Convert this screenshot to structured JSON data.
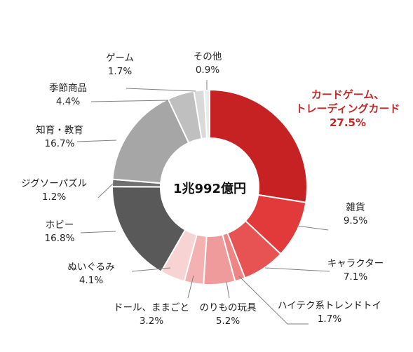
{
  "chart_data": {
    "type": "pie",
    "style": "donut",
    "center_label": "1兆992億円",
    "slices": [
      {
        "name": "カードゲーム、トレーディングカード",
        "label_lines": [
          "カードゲーム、",
          "トレーディングカード"
        ],
        "value_label": "27.5%",
        "value": 27.5,
        "color": "#c62223",
        "highlight": true
      },
      {
        "name": "雑貨",
        "label_lines": [
          "雑貨"
        ],
        "value_label": "9.5%",
        "value": 9.5,
        "color": "#e23a3a"
      },
      {
        "name": "キャラクター",
        "label_lines": [
          "キャラクター"
        ],
        "value_label": "7.1%",
        "value": 7.1,
        "color": "#e75252"
      },
      {
        "name": "ハイテク系トレンドトイ",
        "label_lines": [
          "ハイテク系トレンドトイ"
        ],
        "value_label": "1.7%",
        "value": 1.7,
        "color": "#ee8585"
      },
      {
        "name": "のりもの玩具",
        "label_lines": [
          "のりもの玩具"
        ],
        "value_label": "5.2%",
        "value": 5.2,
        "color": "#f09b9b"
      },
      {
        "name": "ドール、ままごと",
        "label_lines": [
          "ドール、ままごと"
        ],
        "value_label": "3.2%",
        "value": 3.2,
        "color": "#f3b1b1"
      },
      {
        "name": "ぬいぐるみ",
        "label_lines": [
          "ぬいぐるみ"
        ],
        "value_label": "4.1%",
        "value": 4.1,
        "color": "#f8d3d3"
      },
      {
        "name": "ホビー",
        "label_lines": [
          "ホビー"
        ],
        "value_label": "16.8%",
        "value": 16.8,
        "color": "#595959"
      },
      {
        "name": "ジグソーパズル",
        "label_lines": [
          "ジグソーパズル"
        ],
        "value_label": "1.2%",
        "value": 1.2,
        "color": "#6f6f6f"
      },
      {
        "name": "知育・教育",
        "label_lines": [
          "知育・教育"
        ],
        "value_label": "16.7%",
        "value": 16.7,
        "color": "#a6a6a6"
      },
      {
        "name": "季節商品",
        "label_lines": [
          "季節商品"
        ],
        "value_label": "4.4%",
        "value": 4.4,
        "color": "#bfbfbf"
      },
      {
        "name": "ゲーム",
        "label_lines": [
          "ゲーム"
        ],
        "value_label": "1.7%",
        "value": 1.7,
        "color": "#d9d9d9"
      },
      {
        "name": "その他",
        "label_lines": [
          "その他"
        ],
        "value_label": "0.9%",
        "value": 0.9,
        "color": "#ebebeb"
      }
    ]
  }
}
